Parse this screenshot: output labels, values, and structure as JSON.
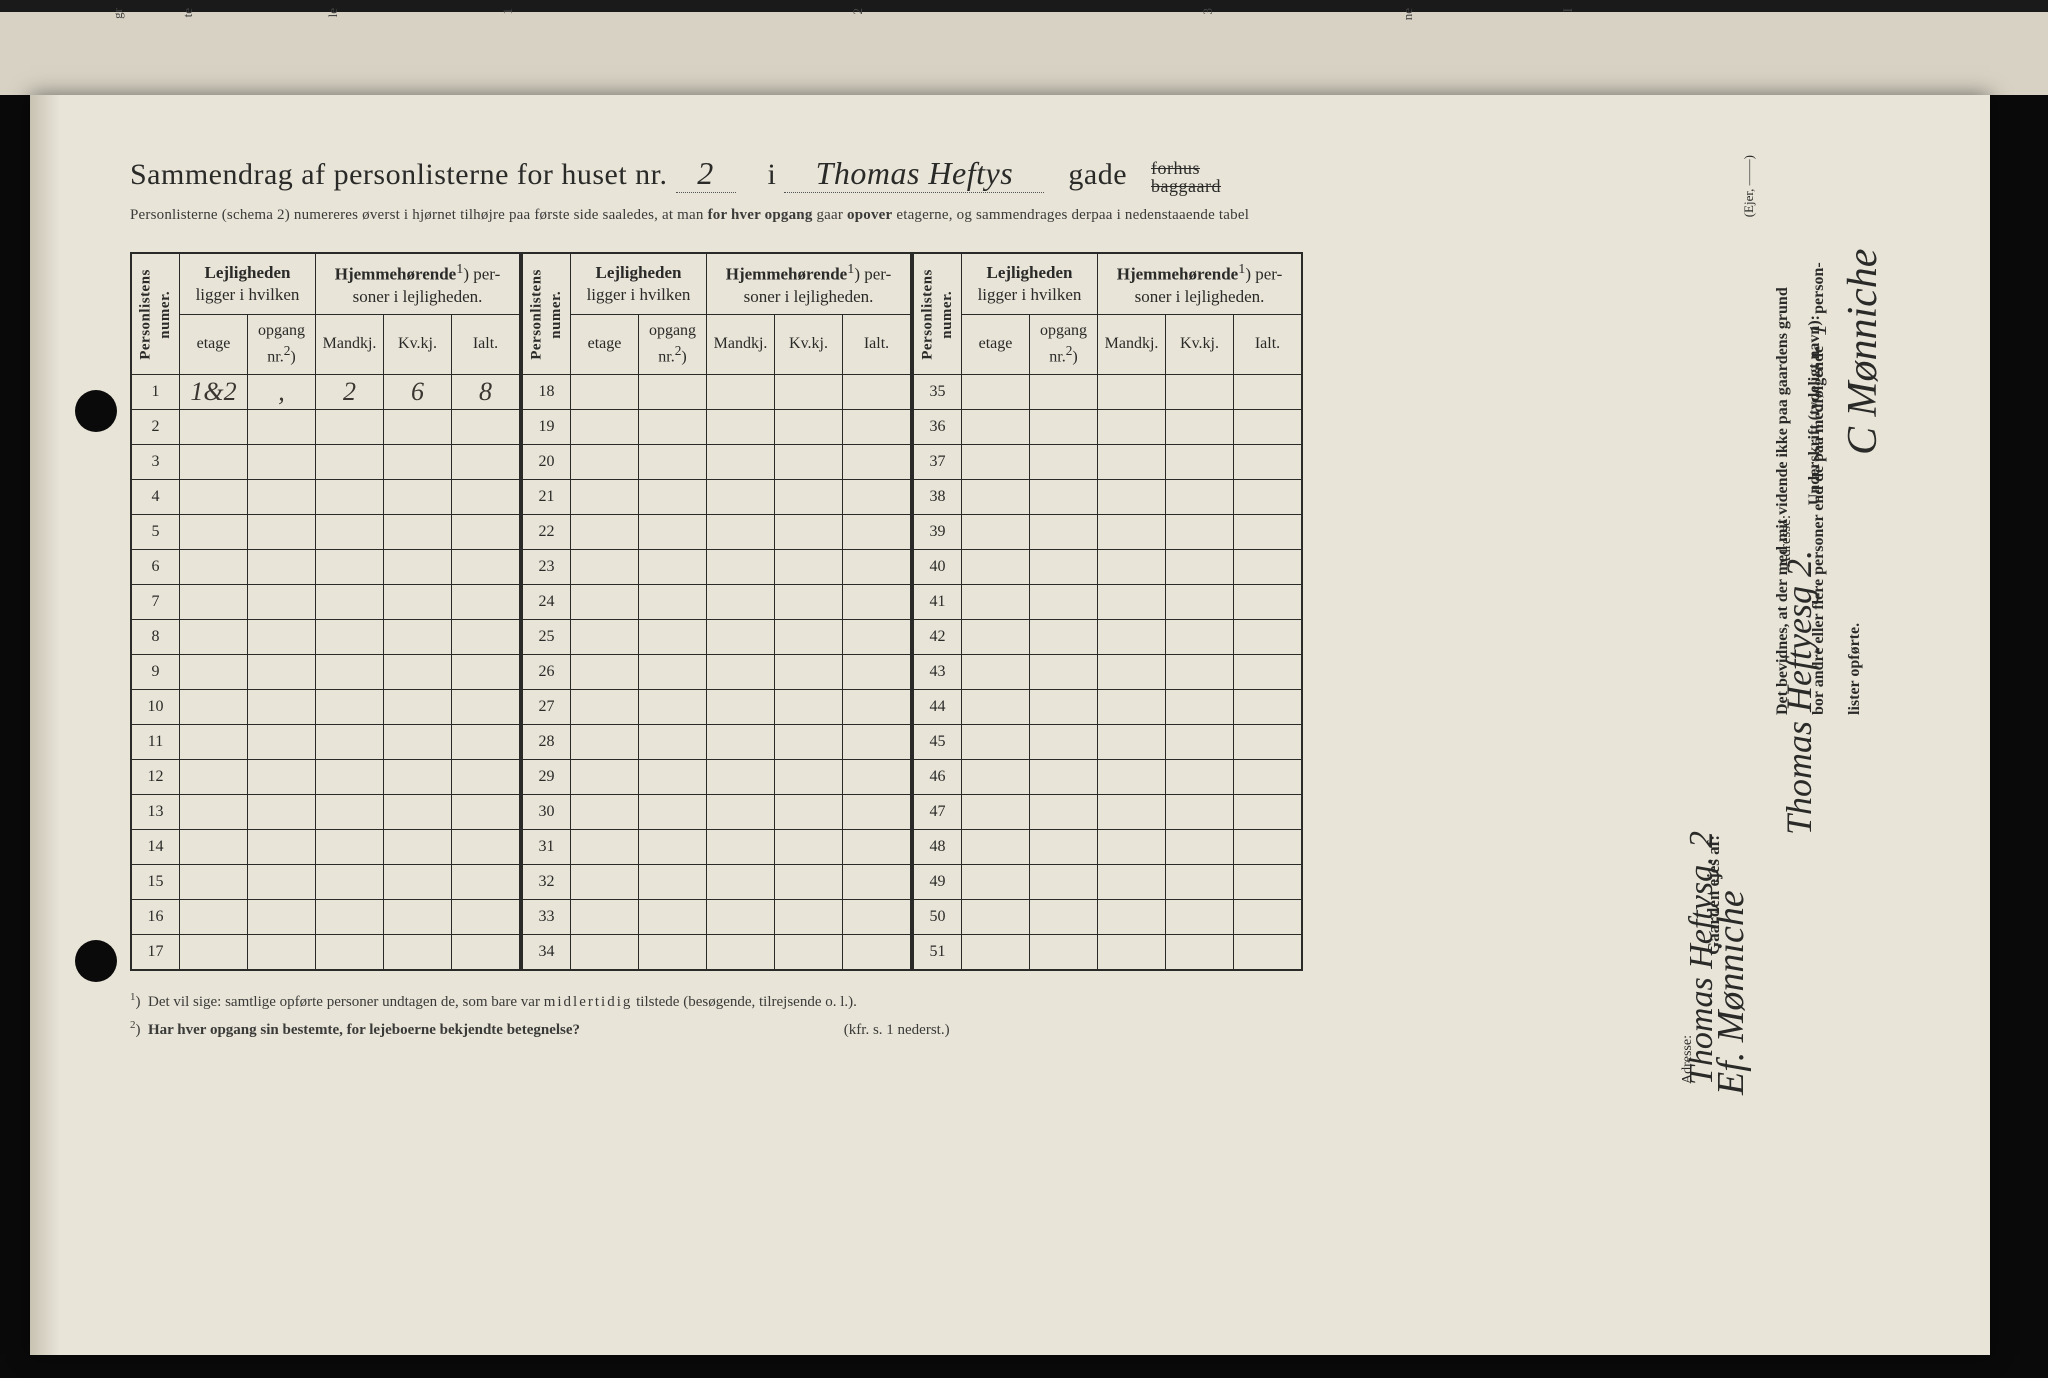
{
  "background_color": "#e8e4d8",
  "text_color": "#2a2a28",
  "handwriting_color": "#3a3530",
  "title": {
    "prefix": "Sammendrag af personlisterne for huset nr.",
    "house_nr": "2",
    "middle": "i",
    "street": "Thomas Heftys",
    "suffix": "gade",
    "forhus": "forhus",
    "baggaard": "baggaard"
  },
  "subtitle": "Personlisterne (schema 2) numereres øverst i hjørnet tilhøjre paa første side saaledes, at man for hver opgang gaar opover etagerne, og sammendrages derpaa i nedenstaaende tabel",
  "headers": {
    "personlistens": "Personlistens numer.",
    "lejligheden": "Lejligheden ligger i hvilken",
    "hjemme": "Hjemmehørende¹) personer i lejligheden.",
    "etage": "etage",
    "opgang": "opgang nr.²)",
    "mandkj": "Mandkj.",
    "kvkj": "Kv.kj.",
    "ialt": "Ialt."
  },
  "blocks": [
    {
      "rows": [
        1,
        2,
        3,
        4,
        5,
        6,
        7,
        8,
        9,
        10,
        11,
        12,
        13,
        14,
        15,
        16,
        17
      ]
    },
    {
      "rows": [
        18,
        19,
        20,
        21,
        22,
        23,
        24,
        25,
        26,
        27,
        28,
        29,
        30,
        31,
        32,
        33,
        34
      ]
    },
    {
      "rows": [
        35,
        36,
        37,
        38,
        39,
        40,
        41,
        42,
        43,
        44,
        45,
        46,
        47,
        48,
        49,
        50,
        51
      ]
    }
  ],
  "row1": {
    "etage": "1&2",
    "opgang": ",",
    "mandkj": "2",
    "kvkj": "6",
    "ialt": "8"
  },
  "footnotes": {
    "f1": "¹)  Det vil sige: samtlige opførte personer undtagen de, som bare var midlertidig tilstede (besøgende, tilrejsende o. l.).",
    "f2_a": "²)  Har hver opgang sin bestemte, for lejeboerne bekjendte betegnelse?",
    "f2_b": "(kfr. s. 1 nederst.)"
  },
  "right": {
    "attest_line1": "Det bevidnes, at der med mit vidende ikke paa gaardens grund",
    "attest_line2": "bor andre eller flere personer end de paa medfølgende",
    "attest_count": "1",
    "attest_line3": "person-",
    "attest_line4": "lister opførte.",
    "underskrift_label": "Underskrift (tydeligt navn):",
    "signature": "C Mønniche",
    "adresse_label": "Adresse:",
    "adresse_value": "Thomas Heftyesg 2.",
    "ejer_label": "(Ejer, ——)",
    "gaarden_label": "Gaarden ejes af:",
    "gaarden_value": "Ef. Mønniche",
    "adresse2_label": "Adresse:",
    "adresse2_value": "Thomas Heftysg. 2"
  },
  "top_fragments": [
    "gr",
    "te",
    "le",
    "1",
    "2",
    "3",
    "ne",
    "I"
  ]
}
